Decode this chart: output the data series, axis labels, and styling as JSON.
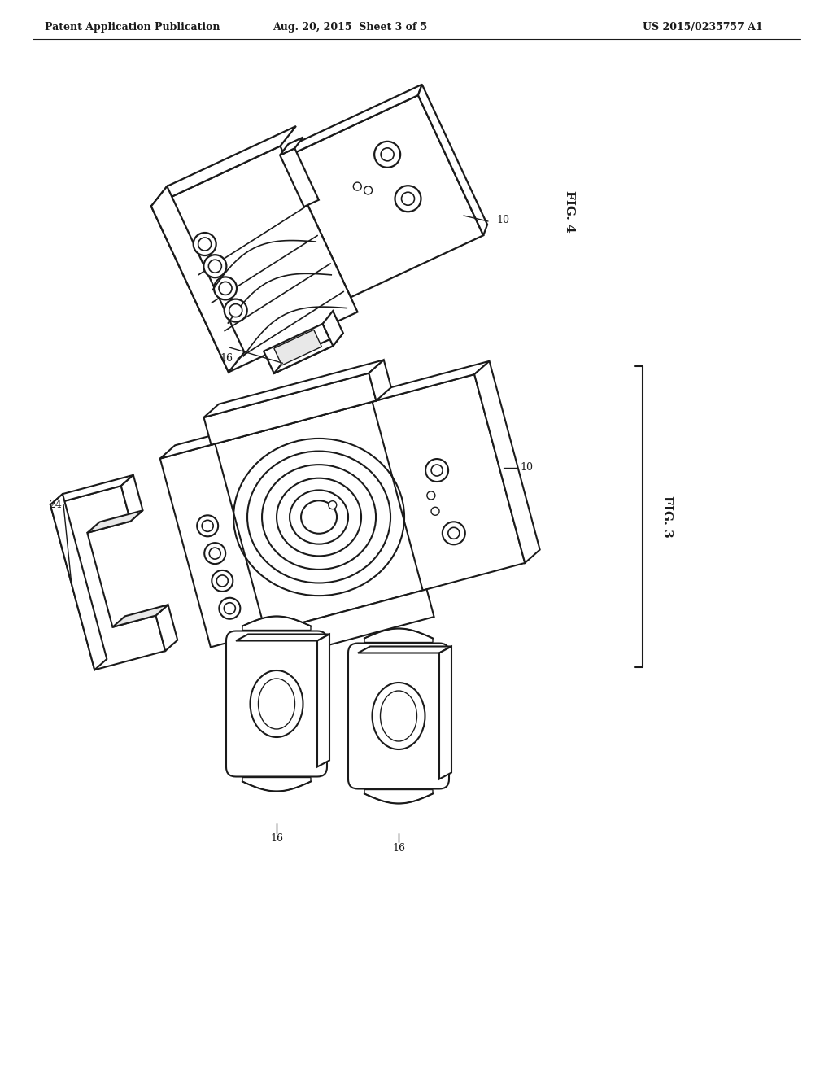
{
  "bg_color": "#ffffff",
  "line_color": "#1a1a1a",
  "header_left": "Patent Application Publication",
  "header_mid": "Aug. 20, 2015  Sheet 3 of 5",
  "header_right": "US 2015/0235757 A1",
  "fig4_label": "FIG. 4",
  "fig3_label": "FIG. 3",
  "label_10_fig4": "10",
  "label_16_fig4": "16",
  "label_24_fig3": "24",
  "label_10_fig3": "10",
  "label_16a_fig3": "16",
  "label_16b_fig3": "16"
}
